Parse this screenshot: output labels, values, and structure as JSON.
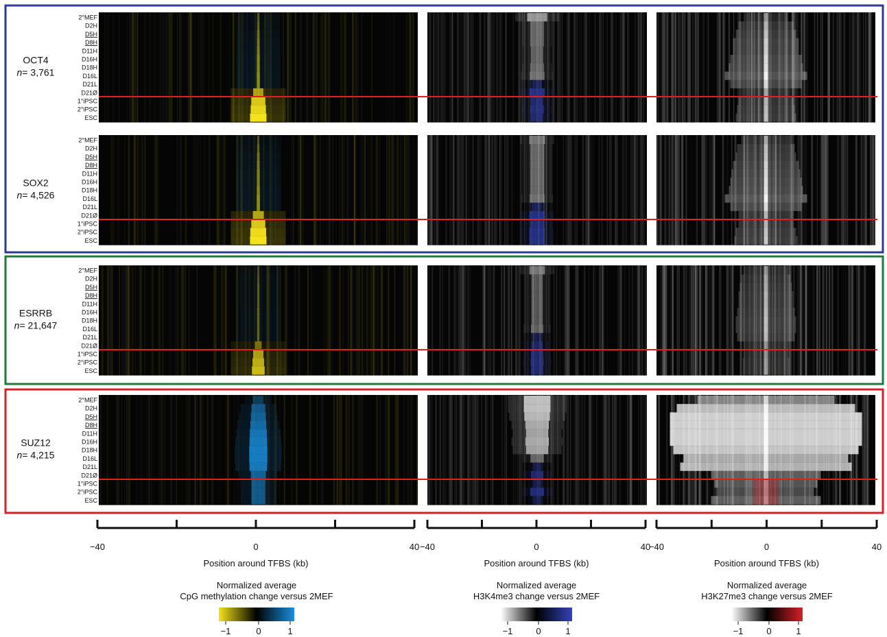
{
  "chart_data": {
    "type": "heatmap",
    "row_labels": [
      "2°MEF",
      "D2H",
      "D5H",
      "D8H",
      "D11H",
      "D16H",
      "D18H",
      "D16L",
      "D21L",
      "D21Ø",
      "1°iPSC",
      "2°iPSC",
      "ESC"
    ],
    "x_range": [
      -40,
      40
    ],
    "x_ticks": [
      -40,
      0,
      40
    ],
    "x_label": "Position around TFBS (kb)",
    "groups": [
      {
        "name": "OCT4",
        "n_prefix": "n",
        "n_text": "= 3,761",
        "frame_color": "#2b3a97",
        "center_intensity": {
          "cpg": 0.7,
          "k4": 0.45,
          "k27": 0.85
        },
        "rows": {
          "cpg": [
            0.05,
            0.1,
            0.2,
            0.25,
            0.3,
            0.35,
            0.35,
            0.4,
            0.4,
            0.5,
            0.8,
            0.9,
            1.0
          ],
          "k4": [
            0.6,
            0.3,
            0.3,
            0.3,
            0.25,
            0.25,
            0.3,
            0.35,
            0.4,
            0.8,
            0.6,
            0.7,
            0.6
          ],
          "k27": [
            0.3,
            0.5,
            0.6,
            0.7,
            0.7,
            0.8,
            0.85,
            1.0,
            0.8,
            0.4,
            0.5,
            0.55,
            0.6
          ]
        }
      },
      {
        "name": "SOX2",
        "n_prefix": "n",
        "n_text": "= 4,526",
        "frame_color": "#2b3a97",
        "center_intensity": {
          "cpg": 0.8,
          "k4": 0.55,
          "k27": 0.8
        },
        "rows": {
          "cpg": [
            0.05,
            0.15,
            0.25,
            0.3,
            0.35,
            0.35,
            0.4,
            0.45,
            0.45,
            0.55,
            0.8,
            0.95,
            1.0
          ],
          "k4": [
            0.4,
            0.3,
            0.3,
            0.3,
            0.3,
            0.3,
            0.3,
            0.35,
            0.4,
            0.8,
            0.7,
            0.8,
            0.8
          ],
          "k27": [
            0.4,
            0.55,
            0.6,
            0.7,
            0.75,
            0.8,
            0.85,
            1.0,
            0.8,
            0.5,
            0.5,
            0.6,
            0.65
          ]
        }
      },
      {
        "name": "ESRRB",
        "n_prefix": "n",
        "n_text": "= 21,647",
        "frame_color": "#1c7a3a",
        "center_intensity": {
          "cpg": 0.35,
          "k4": 0.3,
          "k27": 0.35
        },
        "rows": {
          "cpg": [
            0.0,
            0.05,
            0.1,
            0.1,
            0.1,
            0.15,
            0.15,
            0.15,
            0.15,
            0.2,
            0.5,
            0.6,
            0.7
          ],
          "k4": [
            0.4,
            0.2,
            0.2,
            0.2,
            0.2,
            0.2,
            0.2,
            0.25,
            0.3,
            0.5,
            0.6,
            0.65,
            0.6
          ],
          "k27": [
            0.3,
            0.4,
            0.45,
            0.5,
            0.5,
            0.55,
            0.6,
            0.6,
            0.55,
            0.3,
            0.3,
            0.35,
            0.35
          ]
        }
      },
      {
        "name": "SUZ12",
        "n_prefix": "n",
        "n_text": "= 4,215",
        "frame_color": "#d42027",
        "center_intensity": {
          "cpg": 0.9,
          "k4": 0.9,
          "k27": 1.0
        },
        "rows": {
          "cpg": [
            0.2,
            0.5,
            0.6,
            0.7,
            0.8,
            0.85,
            0.9,
            0.9,
            0.85,
            0.6,
            0.5,
            0.5,
            0.5
          ],
          "k4": [
            0.9,
            0.9,
            0.85,
            0.75,
            0.7,
            0.75,
            0.7,
            0.3,
            0.3,
            0.6,
            0.3,
            0.7,
            0.3
          ],
          "k27": [
            0.6,
            0.9,
            1.0,
            1.0,
            1.0,
            1.0,
            0.95,
            0.8,
            0.85,
            0.4,
            0.35,
            0.3,
            0.4
          ]
        }
      }
    ],
    "columns": [
      {
        "key": "cpg",
        "legend_title": [
          "Normalized average",
          "CpG methylation change versus 2MEF"
        ],
        "neg_color": "#f4e21b",
        "pos_color": "#1a8fe0"
      },
      {
        "key": "k4",
        "legend_title": [
          "Normalized average",
          "H3K4me3 change versus 2MEF"
        ],
        "neg_color": "#ffffff",
        "pos_color": "#3342b8"
      },
      {
        "key": "k27",
        "legend_title": [
          "Normalized average",
          "H3K27me3 change versus 2MEF"
        ],
        "neg_color": "#ffffff",
        "pos_color": "#d42027"
      }
    ],
    "colorbar_ticks": [
      "−1",
      "0",
      "1"
    ],
    "divider_after_row": "D21Ø",
    "divider_color": "#e0201f"
  }
}
